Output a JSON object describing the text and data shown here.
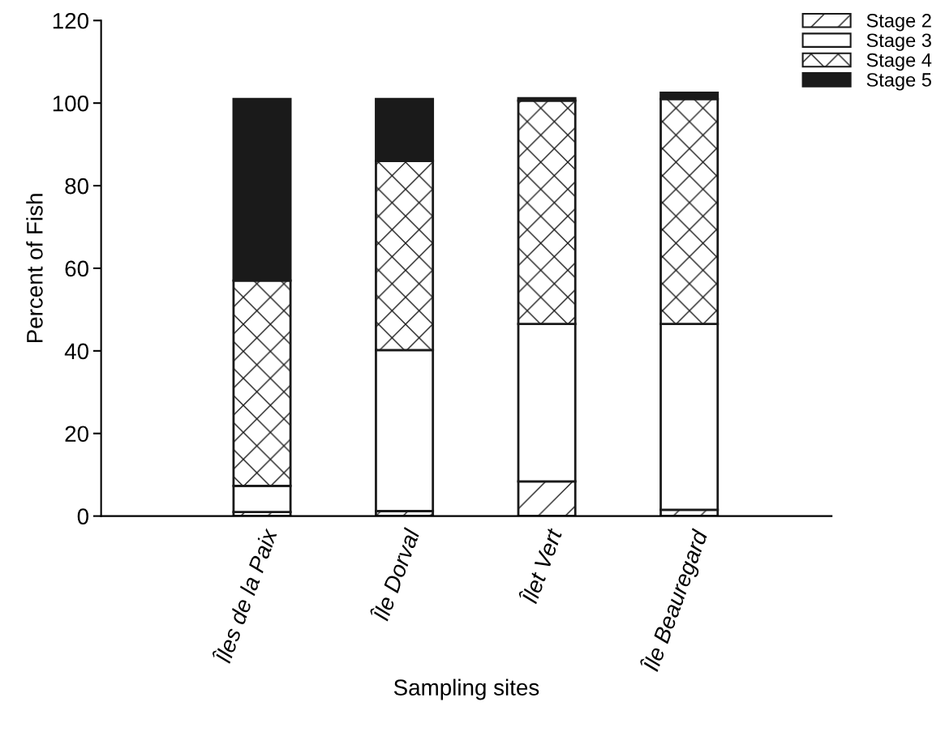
{
  "chart_data": {
    "type": "bar",
    "stacked": true,
    "xlabel": "Sampling sites",
    "ylabel": "Percent of Fish",
    "categories": [
      "Îles de la Paix",
      "Île Dorval",
      "Îlet Vert",
      "Île Beauregard"
    ],
    "series": [
      {
        "name": "Stage 2",
        "color": "#1a1a1a",
        "values": [
          1,
          1.2,
          8.4,
          1.5
        ]
      },
      {
        "name": "Stage 3",
        "color": "#ffffff",
        "values": [
          6.3,
          39,
          38.1,
          45
        ]
      },
      {
        "name": "Stage 4",
        "color": "#1a1a1a",
        "values": [
          49.7,
          45.8,
          54.1,
          54.5
        ]
      },
      {
        "name": "Stage 5",
        "color": "#1a1a1a",
        "values": [
          44,
          15,
          0.6,
          1.5
        ]
      }
    ],
    "ylim": [
      0,
      120
    ],
    "yticks": [
      0,
      20,
      40,
      60,
      80,
      100,
      120
    ],
    "grid": false,
    "legend": "top right"
  }
}
